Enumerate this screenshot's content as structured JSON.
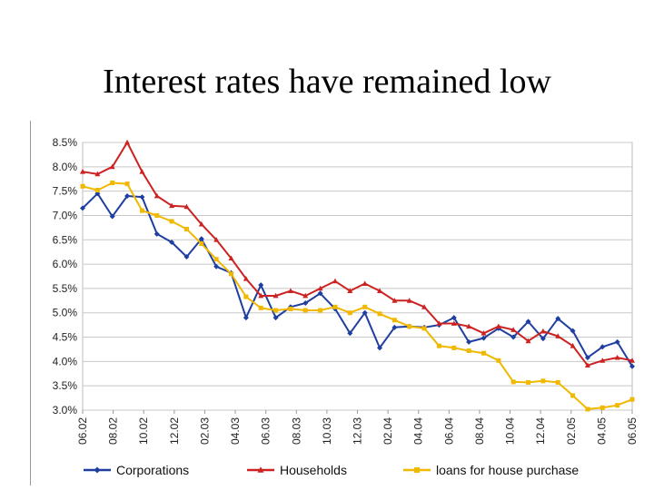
{
  "slide": {
    "title": "Interest rates have remained low"
  },
  "chart_data": {
    "type": "line",
    "ylim": [
      3.0,
      8.5
    ],
    "yticks": [
      "8.5%",
      "8.0%",
      "7.5%",
      "7.0%",
      "6.5%",
      "6.0%",
      "5.5%",
      "5.0%",
      "4.5%",
      "4.0%",
      "3.5%",
      "3.0%"
    ],
    "ytick_values": [
      8.5,
      8.0,
      7.5,
      7.0,
      6.5,
      6.0,
      5.5,
      5.0,
      4.5,
      4.0,
      3.5,
      3.0
    ],
    "xticks": [
      "06.02",
      "08.02",
      "10.02",
      "12.02",
      "02.03",
      "04.03",
      "06.03",
      "08.03",
      "10.03",
      "12.03",
      "02.04",
      "04.04",
      "06.04",
      "08.04",
      "10.04",
      "12.04",
      "02.05",
      "04.05",
      "06.05"
    ],
    "grid": true,
    "legend_position": "bottom",
    "series": [
      {
        "name": "Corporations",
        "color": "#1f3fa0",
        "marker": "diamond",
        "values": [
          7.15,
          7.45,
          6.98,
          7.4,
          7.38,
          6.62,
          6.45,
          6.15,
          6.52,
          5.95,
          5.82,
          4.9,
          5.57,
          4.9,
          5.12,
          5.2,
          5.4,
          5.08,
          4.58,
          5.0,
          4.28,
          4.7,
          4.72,
          4.7,
          4.75,
          4.9,
          4.4,
          4.48,
          4.68,
          4.5,
          4.82,
          4.47,
          4.88,
          4.63,
          4.08,
          4.3,
          4.4,
          3.9
        ]
      },
      {
        "name": "Households",
        "color": "#cc2222",
        "marker": "triangle",
        "values": [
          7.9,
          7.85,
          8.0,
          8.5,
          7.9,
          7.4,
          7.2,
          7.18,
          6.82,
          6.5,
          6.12,
          5.7,
          5.35,
          5.35,
          5.45,
          5.35,
          5.5,
          5.65,
          5.45,
          5.6,
          5.45,
          5.25,
          5.25,
          5.12,
          4.78,
          4.78,
          4.72,
          4.58,
          4.72,
          4.65,
          4.42,
          4.62,
          4.52,
          4.32,
          3.92,
          4.02,
          4.08,
          4.02
        ]
      },
      {
        "name": "loans for house purchase",
        "color": "#f0b800",
        "marker": "square",
        "values": [
          7.6,
          7.52,
          7.67,
          7.65,
          7.1,
          7.0,
          6.88,
          6.72,
          6.42,
          6.1,
          5.8,
          5.33,
          5.1,
          5.05,
          5.08,
          5.05,
          5.05,
          5.12,
          5.0,
          5.12,
          4.98,
          4.85,
          4.72,
          4.68,
          4.32,
          4.28,
          4.22,
          4.17,
          4.02,
          3.58,
          3.57,
          3.6,
          3.57,
          3.3,
          3.02,
          3.05,
          3.1,
          3.22
        ]
      }
    ]
  }
}
